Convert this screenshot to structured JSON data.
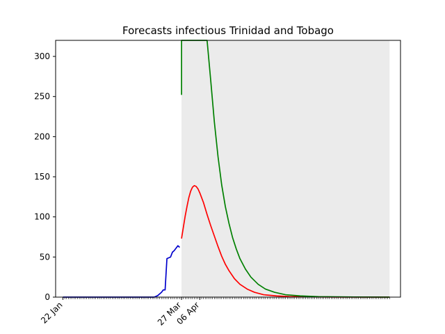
{
  "chart_data": {
    "type": "line",
    "title": "Forecasts infectious Trinidad and Tobago",
    "xlabel": "",
    "ylabel": "",
    "x_start": "2020-01-22",
    "x_end": "2020-07-19",
    "xlim": [
      "2020-01-18",
      "2020-07-25"
    ],
    "ylim": [
      0,
      320
    ],
    "y_ticks": [
      0,
      50,
      100,
      150,
      200,
      250,
      300
    ],
    "x_tick_labels": [
      {
        "date": "2020-01-22",
        "label": "22 Jan"
      },
      {
        "date": "2020-03-27",
        "label": "27 Mar"
      },
      {
        "date": "2020-04-06",
        "label": "06 Apr"
      }
    ],
    "grid": false,
    "legend": "none",
    "shaded_interval": {
      "color": "#ebebeb",
      "start": "2020-03-27",
      "end": "2020-07-19"
    },
    "series": [
      {
        "color": "#0000cc",
        "points": [
          [
            "2020-01-22",
            0
          ],
          [
            "2020-03-08",
            0
          ],
          [
            "2020-03-12",
            0
          ],
          [
            "2020-03-13",
            1
          ],
          [
            "2020-03-14",
            2
          ],
          [
            "2020-03-15",
            4
          ],
          [
            "2020-03-16",
            6
          ],
          [
            "2020-03-17",
            9
          ],
          [
            "2020-03-18",
            9
          ],
          [
            "2020-03-19",
            48
          ],
          [
            "2020-03-20",
            49
          ],
          [
            "2020-03-21",
            50
          ],
          [
            "2020-03-22",
            56
          ],
          [
            "2020-03-23",
            58
          ],
          [
            "2020-03-24",
            61
          ],
          [
            "2020-03-25",
            64
          ],
          [
            "2020-03-26",
            62
          ]
        ]
      },
      {
        "color": "#ff0000",
        "points": [
          [
            "2020-03-27",
            73
          ],
          [
            "2020-03-28",
            87
          ],
          [
            "2020-03-29",
            101
          ],
          [
            "2020-03-30",
            113
          ],
          [
            "2020-03-31",
            124
          ],
          [
            "2020-04-01",
            132
          ],
          [
            "2020-04-02",
            137
          ],
          [
            "2020-04-03",
            139
          ],
          [
            "2020-04-04",
            138
          ],
          [
            "2020-04-05",
            135
          ],
          [
            "2020-04-06",
            130
          ],
          [
            "2020-04-08",
            118
          ],
          [
            "2020-04-10",
            103
          ],
          [
            "2020-04-12",
            89
          ],
          [
            "2020-04-14",
            76
          ],
          [
            "2020-04-16",
            63
          ],
          [
            "2020-04-18",
            51
          ],
          [
            "2020-04-20",
            41
          ],
          [
            "2020-04-22",
            33
          ],
          [
            "2020-04-25",
            23
          ],
          [
            "2020-04-28",
            16
          ],
          [
            "2020-05-02",
            10
          ],
          [
            "2020-05-06",
            6
          ],
          [
            "2020-05-11",
            3
          ],
          [
            "2020-05-18",
            1.5
          ],
          [
            "2020-05-25",
            0.7
          ],
          [
            "2020-06-05",
            0.3
          ],
          [
            "2020-06-20",
            0.1
          ],
          [
            "2020-07-19",
            0
          ]
        ]
      },
      {
        "color": "#008000",
        "points": [
          [
            "2020-03-27",
            252
          ],
          [
            "2020-03-27",
            320
          ],
          [
            "2020-04-10",
            320
          ],
          [
            "2020-04-12",
            270
          ],
          [
            "2020-04-14",
            218
          ],
          [
            "2020-04-16",
            175
          ],
          [
            "2020-04-18",
            140
          ],
          [
            "2020-04-20",
            113
          ],
          [
            "2020-04-22",
            92
          ],
          [
            "2020-04-24",
            74
          ],
          [
            "2020-04-26",
            60
          ],
          [
            "2020-04-28",
            48
          ],
          [
            "2020-05-01",
            35
          ],
          [
            "2020-05-04",
            25
          ],
          [
            "2020-05-08",
            16
          ],
          [
            "2020-05-12",
            10
          ],
          [
            "2020-05-17",
            6
          ],
          [
            "2020-05-23",
            3
          ],
          [
            "2020-05-31",
            1.5
          ],
          [
            "2020-06-10",
            0.6
          ],
          [
            "2020-06-25",
            0.2
          ],
          [
            "2020-07-19",
            0
          ]
        ]
      }
    ]
  }
}
